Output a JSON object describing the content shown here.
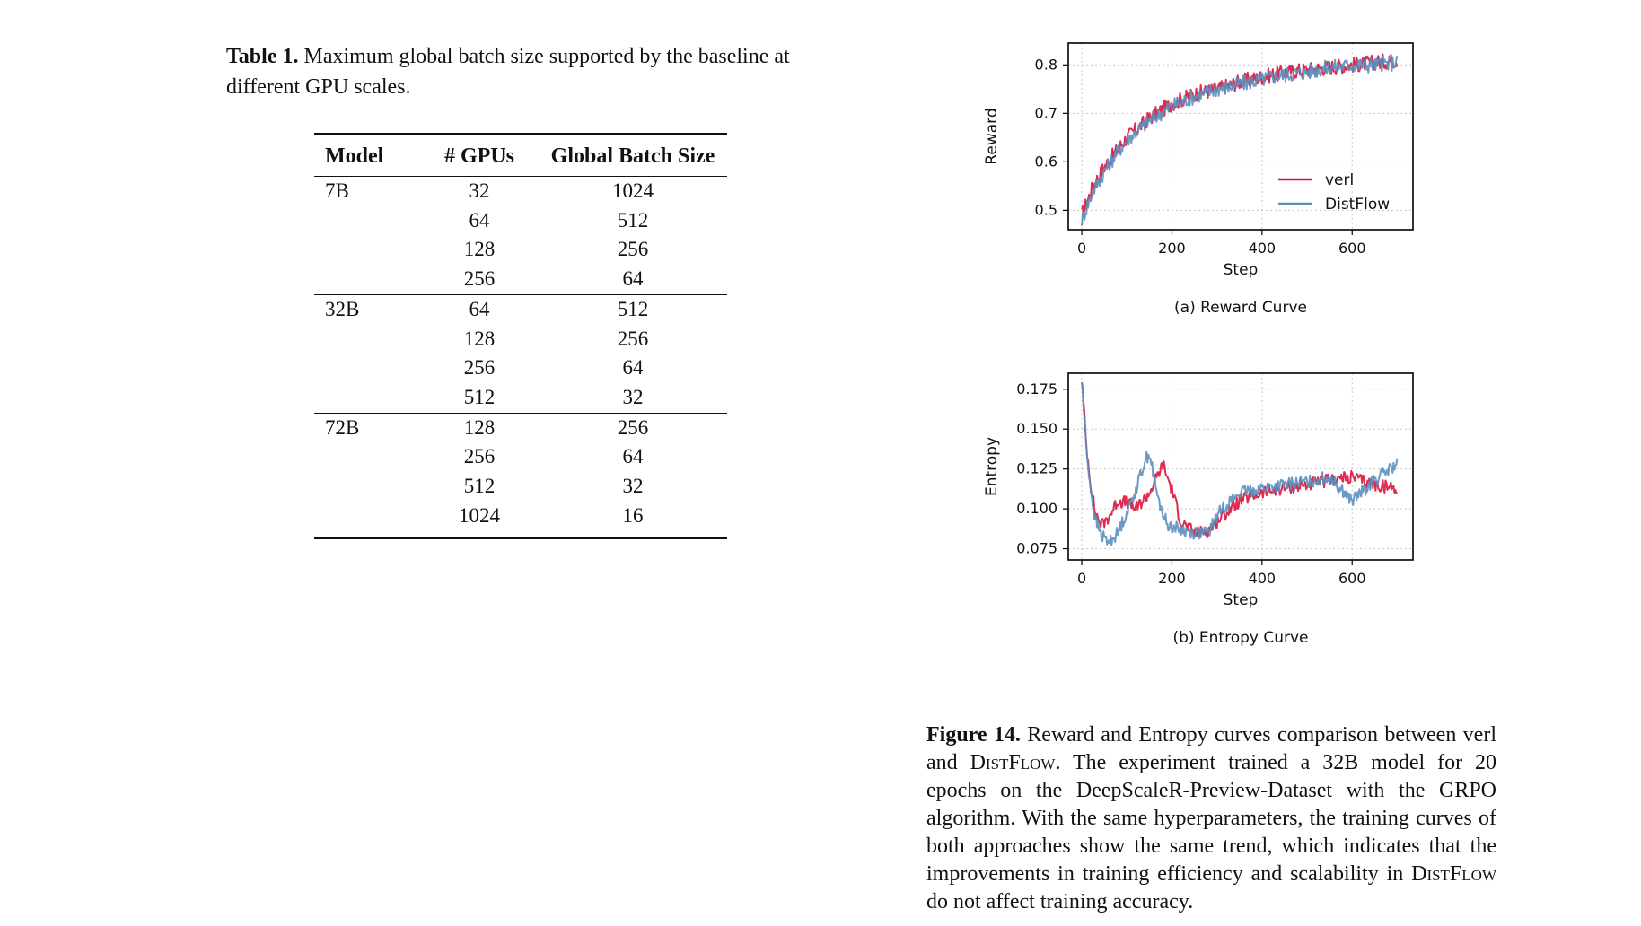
{
  "table": {
    "caption_label": "Table 1.",
    "caption_text": " Maximum global batch size supported by the baseline at different GPU scales.",
    "headers": [
      "Model",
      "# GPUs",
      "Global Batch Size"
    ],
    "groups": [
      {
        "model": "7B",
        "rows": [
          [
            "32",
            "1024"
          ],
          [
            "64",
            "512"
          ],
          [
            "128",
            "256"
          ],
          [
            "256",
            "64"
          ]
        ]
      },
      {
        "model": "32B",
        "rows": [
          [
            "64",
            "512"
          ],
          [
            "128",
            "256"
          ],
          [
            "256",
            "64"
          ],
          [
            "512",
            "32"
          ]
        ]
      },
      {
        "model": "72B",
        "rows": [
          [
            "128",
            "256"
          ],
          [
            "256",
            "64"
          ],
          [
            "512",
            "32"
          ],
          [
            "1024",
            "16"
          ]
        ]
      }
    ]
  },
  "chart_data": [
    {
      "type": "line",
      "subcaption": "(a) Reward Curve",
      "xlabel": "Step",
      "ylabel": "Reward",
      "xlim": [
        -30,
        735
      ],
      "ylim": [
        0.46,
        0.845
      ],
      "xticks": [
        0,
        200,
        400,
        600
      ],
      "yticks": [
        0.5,
        0.6,
        0.7,
        0.8
      ],
      "ytick_labels": [
        "0.5",
        "0.6",
        "0.7",
        "0.8"
      ],
      "grid": true,
      "legend_position": "lower-right",
      "series": [
        {
          "name": "verl",
          "color": "#dc143c",
          "x": [
            0,
            25,
            50,
            75,
            100,
            150,
            200,
            250,
            300,
            350,
            400,
            450,
            500,
            550,
            600,
            650,
            700
          ],
          "y": [
            0.49,
            0.55,
            0.59,
            0.62,
            0.65,
            0.69,
            0.72,
            0.74,
            0.75,
            0.765,
            0.775,
            0.785,
            0.79,
            0.795,
            0.8,
            0.805,
            0.81
          ]
        },
        {
          "name": "DistFlow",
          "color": "#5b8fbf",
          "x": [
            0,
            25,
            50,
            75,
            100,
            150,
            200,
            250,
            300,
            350,
            400,
            450,
            500,
            550,
            600,
            650,
            700
          ],
          "y": [
            0.48,
            0.54,
            0.58,
            0.615,
            0.645,
            0.685,
            0.715,
            0.735,
            0.75,
            0.76,
            0.77,
            0.78,
            0.785,
            0.795,
            0.8,
            0.8,
            0.805
          ]
        }
      ]
    },
    {
      "type": "line",
      "subcaption": "(b) Entropy Curve",
      "xlabel": "Step",
      "ylabel": "Entropy",
      "xlim": [
        -30,
        735
      ],
      "ylim": [
        0.068,
        0.185
      ],
      "xticks": [
        0,
        200,
        400,
        600
      ],
      "yticks": [
        0.075,
        0.1,
        0.125,
        0.15,
        0.175
      ],
      "ytick_labels": [
        "0.075",
        "0.100",
        "0.125",
        "0.150",
        "0.175"
      ],
      "grid": true,
      "series": [
        {
          "name": "verl",
          "color": "#dc143c",
          "x": [
            0,
            10,
            20,
            30,
            45,
            60,
            80,
            100,
            120,
            150,
            180,
            200,
            220,
            250,
            280,
            310,
            350,
            400,
            450,
            500,
            550,
            600,
            650,
            700
          ],
          "y": [
            0.182,
            0.14,
            0.115,
            0.097,
            0.09,
            0.095,
            0.105,
            0.104,
            0.1,
            0.11,
            0.128,
            0.112,
            0.092,
            0.085,
            0.086,
            0.095,
            0.105,
            0.11,
            0.113,
            0.115,
            0.118,
            0.12,
            0.115,
            0.113
          ]
        },
        {
          "name": "DistFlow",
          "color": "#5b8fbf",
          "x": [
            0,
            10,
            20,
            30,
            45,
            60,
            80,
            100,
            120,
            140,
            150,
            170,
            190,
            220,
            250,
            280,
            310,
            350,
            400,
            450,
            500,
            550,
            600,
            650,
            700
          ],
          "y": [
            0.18,
            0.138,
            0.112,
            0.093,
            0.083,
            0.079,
            0.085,
            0.098,
            0.112,
            0.13,
            0.135,
            0.105,
            0.09,
            0.087,
            0.085,
            0.085,
            0.1,
            0.11,
            0.113,
            0.115,
            0.117,
            0.12,
            0.105,
            0.118,
            0.128
          ]
        }
      ]
    }
  ],
  "figure": {
    "label": "Figure 14.",
    "text_1": " Reward and Entropy curves comparison between verl and ",
    "distflow_1": "DistFlow",
    "text_2": ". The experiment trained a 32B model for 20 epochs on the DeepScaleR-Preview-Dataset with the GRPO algorithm. With the same hyperparameters, the training curves of both approaches show the same trend, which indicates that the improvements in training efficiency and scalability in ",
    "distflow_2": "DistFlow",
    "text_3": " do not affect training accuracy."
  }
}
